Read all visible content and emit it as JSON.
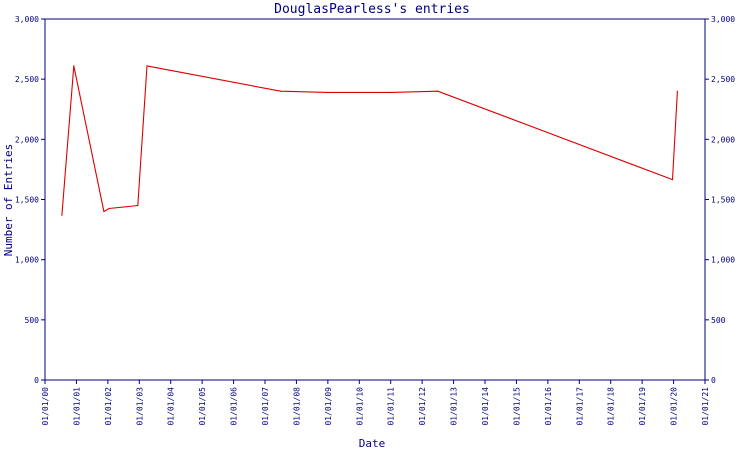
{
  "chart_data": {
    "type": "line",
    "title": "DouglasPearless's entries",
    "xlabel": "Date",
    "ylabel": "Number of Entries",
    "x_ticks": [
      "01/01/00",
      "01/01/01",
      "01/01/02",
      "01/01/03",
      "01/01/04",
      "01/01/05",
      "01/01/06",
      "01/01/07",
      "01/01/08",
      "01/01/09",
      "01/01/10",
      "01/01/11",
      "01/01/12",
      "01/01/13",
      "01/01/14",
      "01/01/15",
      "01/01/16",
      "01/01/17",
      "01/01/18",
      "01/01/19",
      "01/01/20",
      "01/01/21"
    ],
    "y_ticks": [
      "0",
      "500",
      "1,000",
      "1,500",
      "2,000",
      "2,500",
      "3,000"
    ],
    "ylim": [
      0,
      3000
    ],
    "xlim": [
      "2000-01-01",
      "2021-01-01"
    ],
    "grid": false,
    "series": [
      {
        "color": "#dd0000",
        "x": [
          "2000-07-15",
          "2000-12-01",
          "2001-11-15",
          "2002-01-15",
          "2002-12-15",
          "2003-04-01",
          "2007-07-01",
          "2009-01-01",
          "2011-01-01",
          "2012-07-01",
          "2019-12-20",
          "2020-02-15"
        ],
        "values": [
          1370,
          2610,
          1400,
          1425,
          1450,
          2610,
          2400,
          2390,
          2390,
          2400,
          1665,
          2400
        ]
      }
    ]
  }
}
